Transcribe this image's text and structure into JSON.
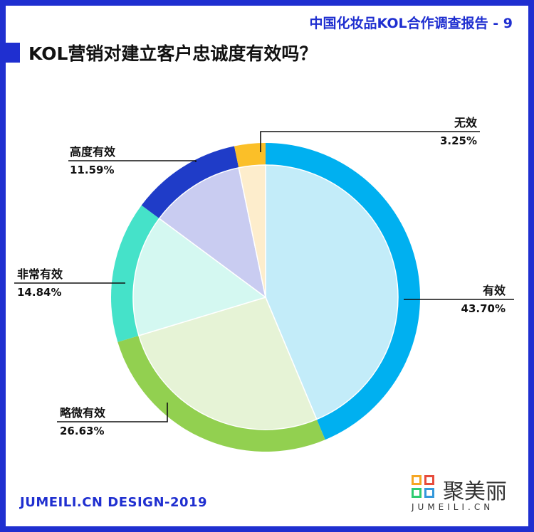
{
  "header": {
    "report_title": "中国化妆品KOL合作调查报告 - 9"
  },
  "footer": {
    "credit": "JUMEILI.CN DESIGN-2019",
    "brand_name": "聚美丽",
    "brand_url": "JUMEILI.CN"
  },
  "chart_data": {
    "type": "pie",
    "title": "KOL营销对建立客户忠诚度有效吗？",
    "unit": "%",
    "slices": [
      {
        "label": "有效",
        "value": 43.7,
        "display": "43.70%",
        "ring_color": "#00b0f0",
        "fill_color": "#c3ecf9"
      },
      {
        "label": "略微有效",
        "value": 26.63,
        "display": "26.63%",
        "ring_color": "#92d050",
        "fill_color": "#e6f3d6"
      },
      {
        "label": "非常有效",
        "value": 14.84,
        "display": "14.84%",
        "ring_color": "#45e2c9",
        "fill_color": "#d4f8f1"
      },
      {
        "label": "高度有效",
        "value": 11.59,
        "display": "11.59%",
        "ring_color": "#1f3cc8",
        "fill_color": "#c9ccf1"
      },
      {
        "label": "无效",
        "value": 3.25,
        "display": "3.25%",
        "ring_color": "#fbbf28",
        "fill_color": "#fdedcc"
      }
    ]
  }
}
